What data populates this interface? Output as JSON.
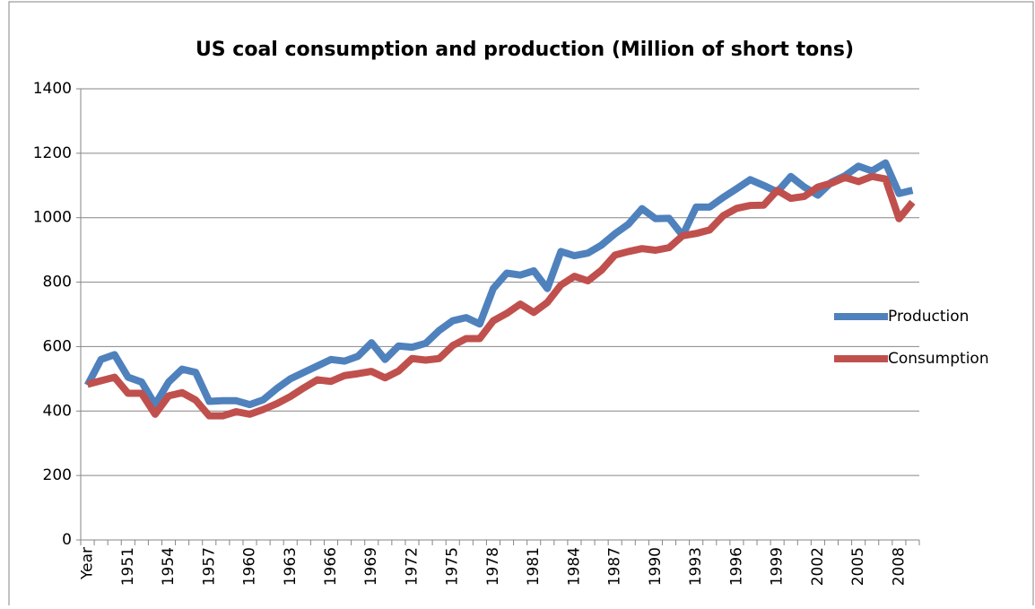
{
  "chart_data": {
    "type": "line",
    "title": "US coal consumption and production (Million of short tons)",
    "categories": [
      "Year",
      null,
      null,
      "1951",
      null,
      null,
      "1954",
      null,
      null,
      "1957",
      null,
      null,
      "1960",
      null,
      null,
      "1963",
      null,
      null,
      "1966",
      null,
      null,
      "1969",
      null,
      null,
      "1972",
      null,
      null,
      "1975",
      null,
      null,
      "1978",
      null,
      null,
      "1981",
      null,
      null,
      "1984",
      null,
      null,
      "1987",
      null,
      null,
      "1990",
      null,
      null,
      "1993",
      null,
      null,
      "1996",
      null,
      null,
      "1999",
      null,
      null,
      "2002",
      null,
      null,
      "2005",
      null,
      null,
      "2008",
      null
    ],
    "series": [
      {
        "name": "Production",
        "color": "#4f81bd",
        "values": [
          480,
          560,
          575,
          505,
          490,
          420,
          490,
          530,
          520,
          430,
          432,
          432,
          420,
          435,
          470,
          500,
          520,
          540,
          560,
          555,
          570,
          612,
          560,
          602,
          598,
          610,
          650,
          680,
          690,
          670,
          780,
          828,
          822,
          835,
          780,
          895,
          882,
          890,
          915,
          950,
          980,
          1028,
          997,
          998,
          945,
          1033,
          1033,
          1063,
          1090,
          1118,
          1100,
          1080,
          1128,
          1095,
          1070,
          1110,
          1130,
          1160,
          1145,
          1170,
          1075,
          1085
        ]
      },
      {
        "name": "Consumption",
        "color": "#c0504d",
        "values": [
          483,
          494,
          505,
          455,
          455,
          390,
          447,
          457,
          434,
          385,
          385,
          398,
          390,
          405,
          423,
          445,
          472,
          497,
          492,
          510,
          516,
          523,
          503,
          524,
          563,
          558,
          563,
          603,
          625,
          625,
          680,
          703,
          732,
          706,
          737,
          791,
          818,
          804,
          837,
          884,
          895,
          904,
          899,
          907,
          944,
          951,
          962,
          1006,
          1029,
          1038,
          1039,
          1085,
          1060,
          1066,
          1095,
          1107,
          1125,
          1112,
          1128,
          1120,
          997,
          1048
        ]
      }
    ],
    "ylim": [
      0,
      1400
    ],
    "yticks": [
      0,
      200,
      400,
      600,
      800,
      1000,
      1200,
      1400
    ],
    "grid": true,
    "legend": "right"
  }
}
